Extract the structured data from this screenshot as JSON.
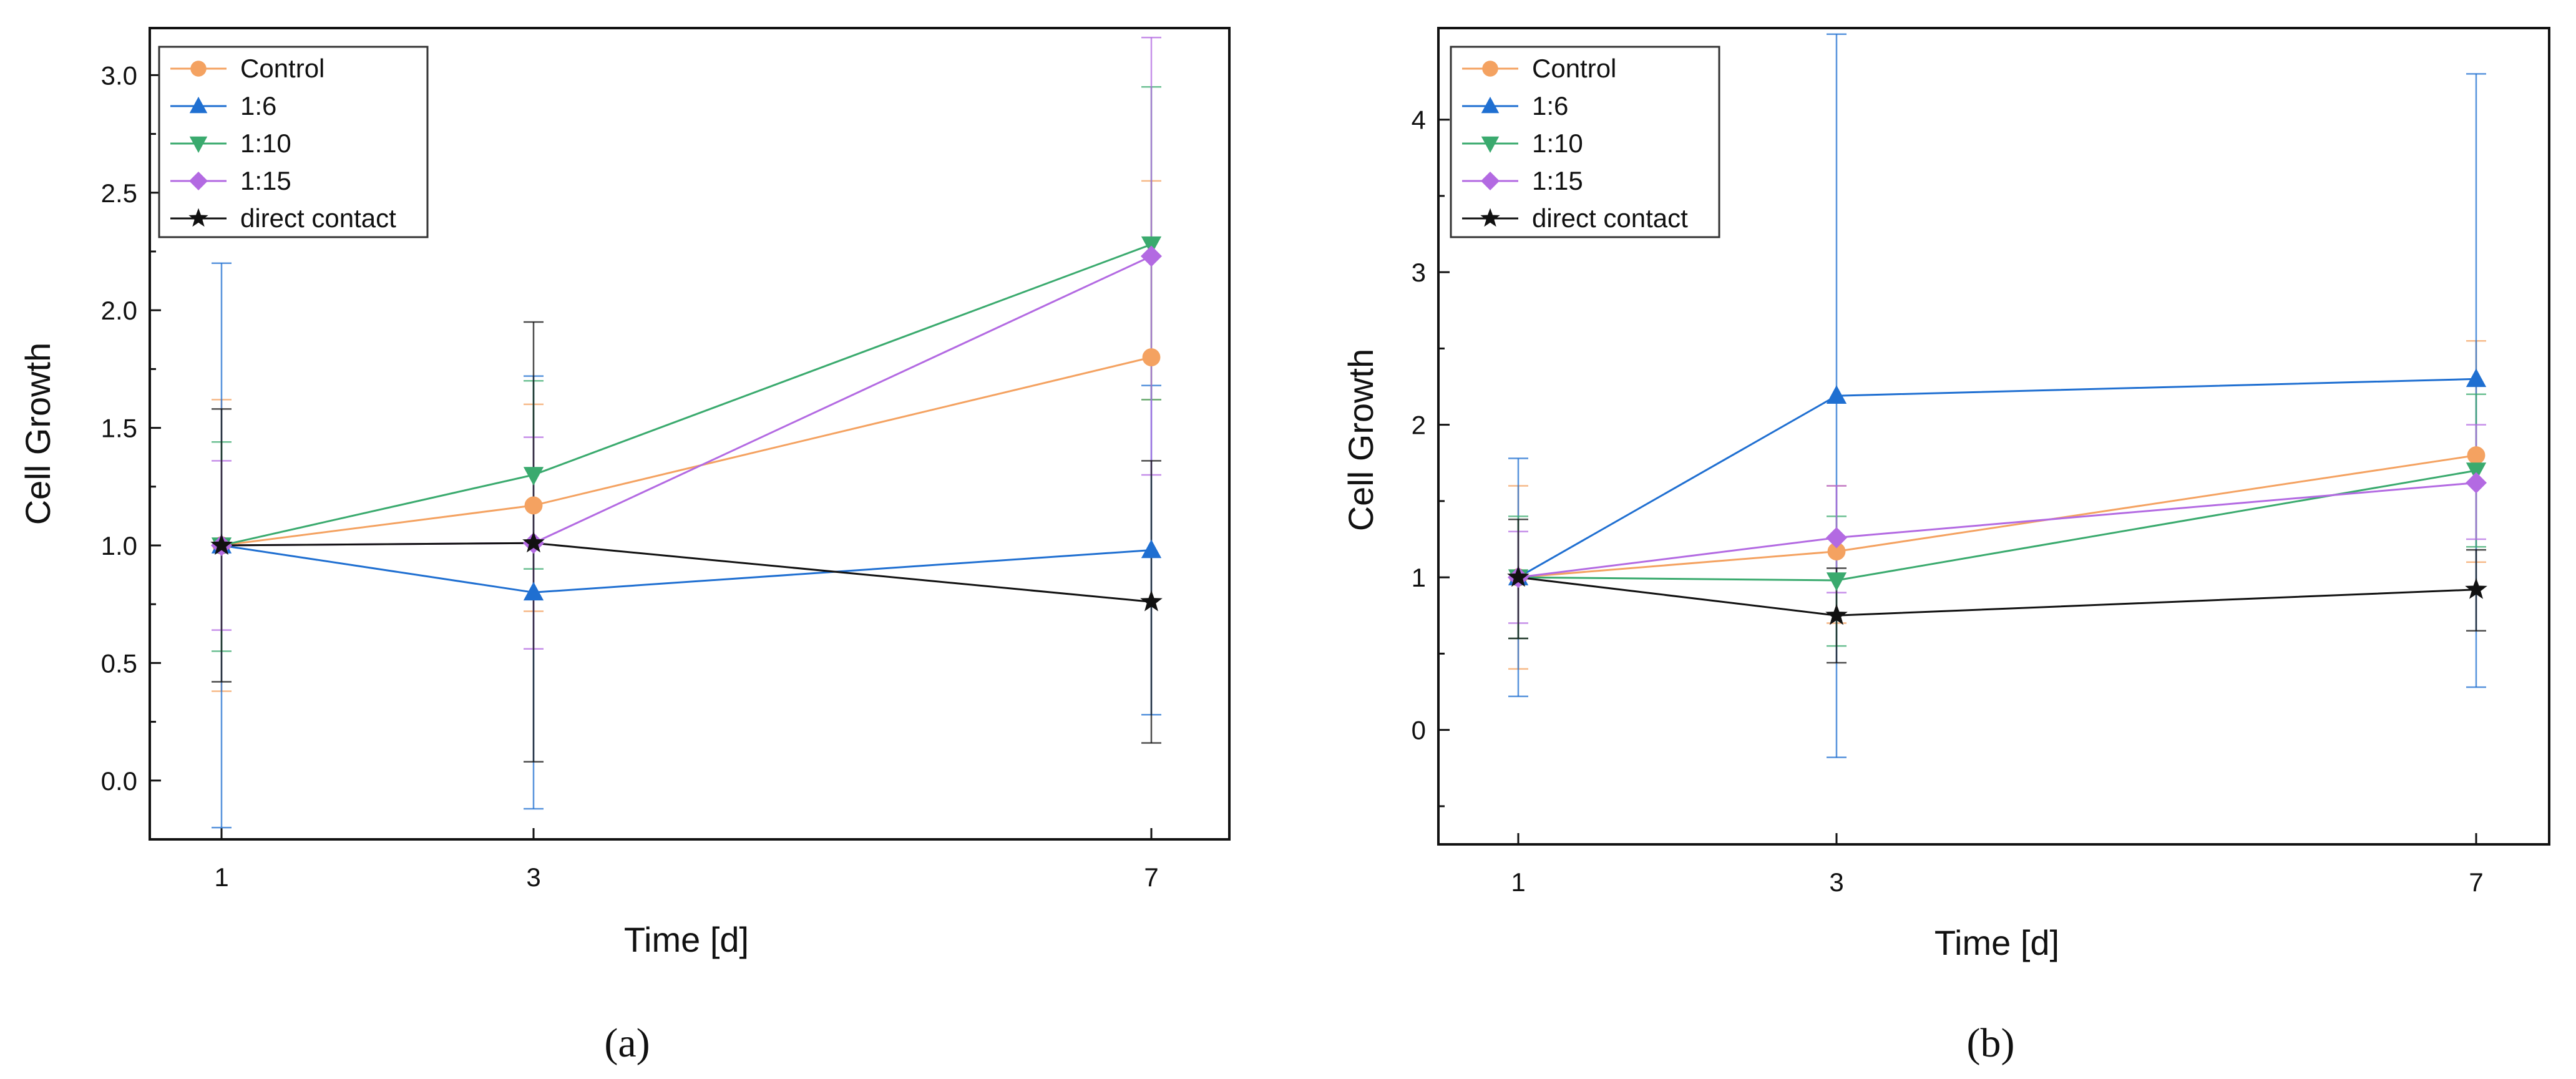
{
  "colors": {
    "Control": "#f4a261",
    "1:6": "#1f6fd1",
    "1:10": "#3aaa6e",
    "1:15": "#b36ae2",
    "direct contact": "#111111"
  },
  "chart_data": [
    {
      "type": "line",
      "panel_label": "(a)",
      "xlabel": "Time [d]",
      "ylabel": "Cell Growth",
      "x": [
        1,
        3,
        7
      ],
      "x_tick_labels": [
        "1",
        "3",
        "7"
      ],
      "ylim": [
        -0.25,
        3.2
      ],
      "y_ticks": [
        0.0,
        0.5,
        1.0,
        1.5,
        2.0,
        2.5,
        3.0
      ],
      "y_tick_labels": [
        "0.0",
        "0.5",
        "1.0",
        "1.5",
        "2.0",
        "2.5",
        "3.0"
      ],
      "legend_position": "top-left",
      "series": [
        {
          "name": "Control",
          "marker": "circle",
          "values": [
            1.0,
            1.17,
            1.8
          ],
          "err_low": [
            0.38,
            0.72,
            1.62
          ],
          "err_high": [
            1.62,
            1.6,
            2.55
          ]
        },
        {
          "name": "1:6",
          "marker": "triangle-up",
          "values": [
            1.0,
            0.8,
            0.98
          ],
          "err_low": [
            -0.2,
            -0.12,
            0.28
          ],
          "err_high": [
            2.2,
            1.72,
            1.68
          ]
        },
        {
          "name": "1:10",
          "marker": "triangle-down",
          "values": [
            1.0,
            1.3,
            2.28
          ],
          "err_low": [
            0.55,
            0.9,
            1.62
          ],
          "err_high": [
            1.44,
            1.7,
            2.95
          ]
        },
        {
          "name": "1:15",
          "marker": "diamond",
          "values": [
            1.0,
            1.01,
            2.23
          ],
          "err_low": [
            0.64,
            0.56,
            1.3
          ],
          "err_high": [
            1.36,
            1.46,
            3.16
          ]
        },
        {
          "name": "direct contact",
          "marker": "star",
          "values": [
            1.0,
            1.01,
            0.76
          ],
          "err_low": [
            0.42,
            0.08,
            0.16
          ],
          "err_high": [
            1.58,
            1.95,
            1.36
          ]
        }
      ]
    },
    {
      "type": "line",
      "panel_label": "(b)",
      "xlabel": "Time [d]",
      "ylabel": "Cell Growth",
      "x": [
        1,
        3,
        7
      ],
      "x_tick_labels": [
        "1",
        "3",
        "7"
      ],
      "ylim": [
        -0.75,
        4.6
      ],
      "y_ticks": [
        0,
        1,
        2,
        3,
        4
      ],
      "y_tick_labels": [
        "0",
        "1",
        "2",
        "3",
        "4"
      ],
      "legend_position": "top-left",
      "series": [
        {
          "name": "Control",
          "marker": "circle",
          "values": [
            1.0,
            1.17,
            1.8
          ],
          "err_low": [
            0.4,
            0.7,
            1.1
          ],
          "err_high": [
            1.6,
            1.6,
            2.55
          ]
        },
        {
          "name": "1:6",
          "marker": "triangle-up",
          "values": [
            1.0,
            2.19,
            2.3
          ],
          "err_low": [
            0.22,
            -0.18,
            0.28
          ],
          "err_high": [
            1.78,
            4.56,
            4.3
          ]
        },
        {
          "name": "1:10",
          "marker": "triangle-down",
          "values": [
            1.0,
            0.98,
            1.7
          ],
          "err_low": [
            0.6,
            0.55,
            1.2
          ],
          "err_high": [
            1.4,
            1.4,
            2.2
          ]
        },
        {
          "name": "1:15",
          "marker": "diamond",
          "values": [
            1.0,
            1.26,
            1.62
          ],
          "err_low": [
            0.7,
            0.9,
            1.25
          ],
          "err_high": [
            1.3,
            1.6,
            2.0
          ]
        },
        {
          "name": "direct contact",
          "marker": "star",
          "values": [
            1.0,
            0.75,
            0.92
          ],
          "err_low": [
            0.6,
            0.44,
            0.65
          ],
          "err_high": [
            1.38,
            1.06,
            1.18
          ]
        }
      ]
    }
  ]
}
